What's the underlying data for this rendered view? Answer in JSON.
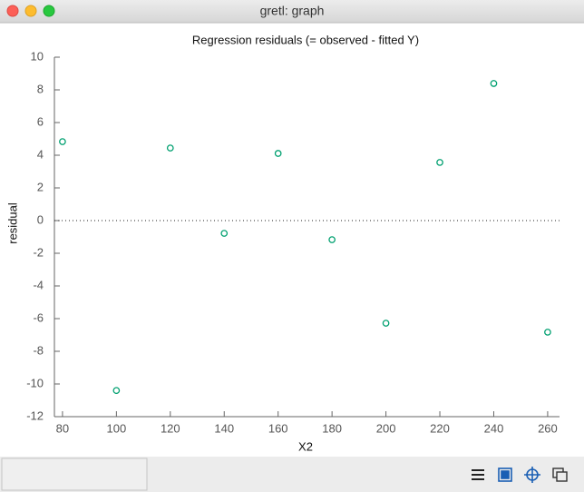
{
  "window": {
    "title": "gretl: graph"
  },
  "chart_data": {
    "type": "scatter",
    "title": "Regression residuals (= observed - fitted Y)",
    "x_label": "X2",
    "y_label": "residual",
    "x": [
      80,
      100,
      120,
      140,
      160,
      180,
      200,
      220,
      240,
      260
    ],
    "values": [
      4.83,
      -10.4,
      4.44,
      -0.78,
      4.11,
      -1.17,
      -6.28,
      3.56,
      8.39,
      -6.83
    ],
    "color": "#00a070",
    "xlim": [
      77,
      264.4
    ],
    "xticks": [
      80,
      100,
      120,
      140,
      160,
      180,
      200,
      220,
      240,
      260
    ],
    "ylim": [
      -12,
      10
    ],
    "yticks": [
      10,
      8,
      6,
      4,
      2,
      0,
      -2,
      -4,
      -6,
      -8,
      -10,
      -12
    ],
    "zero_line": true
  }
}
